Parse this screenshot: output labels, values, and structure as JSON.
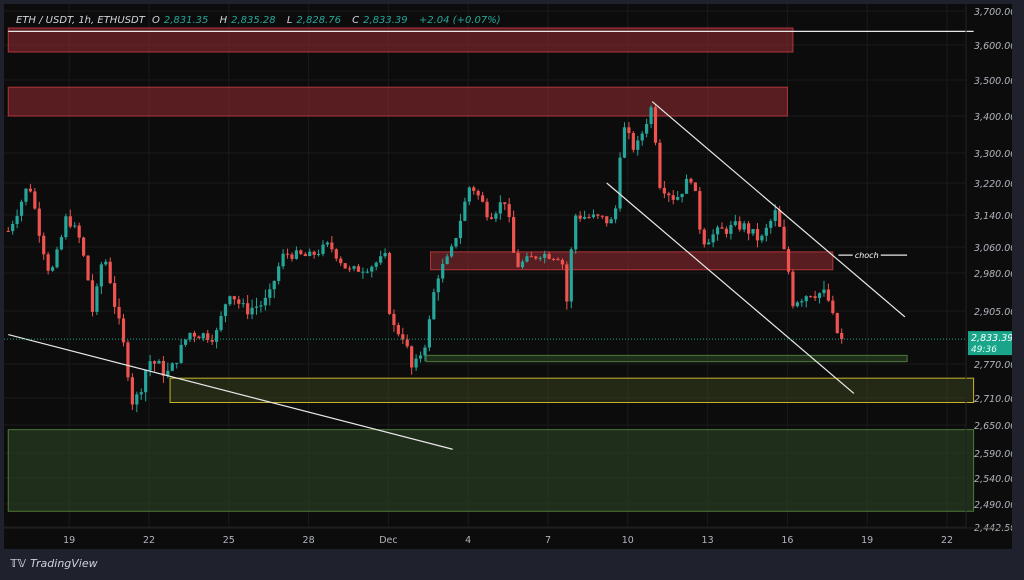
{
  "header": {
    "symbol": "ETH / USDT, 1h, ETHUSDT",
    "open_label": "O",
    "open": "2,831.35",
    "high_label": "H",
    "high": "2,835.28",
    "low_label": "L",
    "low": "2,828.76",
    "close_label": "C",
    "close": "2,833.39",
    "change": "+2.04 (+0.07%)"
  },
  "footer": {
    "brand": "TradingView",
    "logo_text": "TV"
  },
  "colors": {
    "up": "#26a69a",
    "down": "#ef5350",
    "background": "#0c0c0c",
    "price_tag": "#1aa58a",
    "supply_zone": "#8b2a2e",
    "demand_zone": "#2f4a26",
    "yellow_zone": "#c8b42a"
  },
  "chart_data": {
    "type": "candlestick",
    "title": "",
    "interval": "1h",
    "y_ticks": [
      "3,700.00",
      "3,600.00",
      "3,500.00",
      "3,400.00",
      "3,300.00",
      "3,220.00",
      "3,140.00",
      "3,060.00",
      "2,980.00",
      "2,905.00",
      "2,770.00",
      "2,710.00",
      "2,650.00",
      "2,590.00",
      "2,540.00",
      "2,490.00",
      "2,442.50"
    ],
    "x_ticks": [
      "19",
      "22",
      "25",
      "28",
      "Dec",
      "4",
      "7",
      "10",
      "13",
      "16",
      "19",
      "22"
    ],
    "ylim": [
      2442.5,
      3700
    ],
    "last_price": 2833.39,
    "last_price_label": "2,833.39",
    "countdown": "49:36",
    "approx_price_path": [
      [
        "Nov 16 17:00",
        3100
      ],
      [
        "Nov 17 12:00",
        3220
      ],
      [
        "Nov 18 07:00",
        2970
      ],
      [
        "Nov 18 22:00",
        3140
      ],
      [
        "Nov 19 10:00",
        3075
      ],
      [
        "Nov 19 22:00",
        2890
      ],
      [
        "Nov 20 07:00",
        3040
      ],
      [
        "Nov 20 22:00",
        2860
      ],
      [
        "Nov 21 10:00",
        2690
      ],
      [
        "Nov 22 00:00",
        2780
      ],
      [
        "Nov 22 19:00",
        2750
      ],
      [
        "Nov 23 12:00",
        2850
      ],
      [
        "Nov 24 12:00",
        2840
      ],
      [
        "Nov 25 00:00",
        2950
      ],
      [
        "Nov 25 14:00",
        2905
      ],
      [
        "Nov 26 12:00",
        2925
      ],
      [
        "Nov 27 02:00",
        3040
      ],
      [
        "Nov 28 00:00",
        3030
      ],
      [
        "Nov 28 19:00",
        3065
      ],
      [
        "Nov 29 12:00",
        2985
      ],
      [
        "Nov 30 07:00",
        3000
      ],
      [
        "Nov 30 22:00",
        3030
      ],
      [
        "Dec 1 02:00",
        2870
      ],
      [
        "Dec 1 14:00",
        2840
      ],
      [
        "Dec 1 22:00",
        2750
      ],
      [
        "Dec 2 10:00",
        2830
      ],
      [
        "Dec 2 19:00",
        2970
      ],
      [
        "Dec 3 07:00",
        3030
      ],
      [
        "Dec 4 02:00",
        3220
      ],
      [
        "Dec 4 19:00",
        3140
      ],
      [
        "Dec 5 10:00",
        3180
      ],
      [
        "Dec 5 19:00",
        3000
      ],
      [
        "Dec 6 17:00",
        3040
      ],
      [
        "Dec 7 12:00",
        3030
      ],
      [
        "Dec 7 17:00",
        2925
      ],
      [
        "Dec 8 00:00",
        3140
      ],
      [
        "Dec 9 00:00",
        3130
      ],
      [
        "Dec 9 12:00",
        3120
      ],
      [
        "Dec 9 19:00",
        3375
      ],
      [
        "Dec 10 07:00",
        3305
      ],
      [
        "Dec 10 22:00",
        3430
      ],
      [
        "Dec 11 05:00",
        3220
      ],
      [
        "Dec 11 19:00",
        3180
      ],
      [
        "Dec 12 10:00",
        3240
      ],
      [
        "Dec 12 19:00",
        3075
      ],
      [
        "Dec 13 12:00",
        3100
      ],
      [
        "Dec 14 07:00",
        3115
      ],
      [
        "Dec 15 00:00",
        3075
      ],
      [
        "Dec 15 14:00",
        3150
      ],
      [
        "Dec 15 22:00",
        3030
      ],
      [
        "Dec 16 05:00",
        2925
      ],
      [
        "Dec 16 22:00",
        2945
      ],
      [
        "Dec 17 12:00",
        2935
      ],
      [
        "Dec 17 22:00",
        2840
      ],
      [
        "Dec 18 02:00",
        2833.39
      ]
    ],
    "zones": [
      {
        "kind": "supply",
        "from": "Nov 16 17:00",
        "to": "Dec 16 05:00",
        "low": 3580,
        "high": 3650
      },
      {
        "kind": "supply",
        "from": "Nov 16 17:00",
        "to": "Dec 16 00:00",
        "low": 3400,
        "high": 3480
      },
      {
        "kind": "supply",
        "from": "Dec 2 14:00",
        "to": "Dec 17 17:00",
        "low": 2990,
        "high": 3045
      },
      {
        "kind": "demand",
        "from": "Dec 2 10:00",
        "to": "Dec 20 12:00",
        "low": 2776,
        "high": 2792
      },
      {
        "kind": "yellow",
        "from": "Nov 22 19:00",
        "to": "Dec 23 00:00",
        "low": 2700,
        "high": 2745
      },
      {
        "kind": "demand",
        "from": "Nov 16 17:00",
        "to": "Dec 23 00:00",
        "low": 2475,
        "high": 2640
      }
    ],
    "lines": [
      {
        "kind": "horizontal",
        "from": "Nov 16 17:00",
        "to": "Dec 23 00:00",
        "price": 3640
      },
      {
        "kind": "trend",
        "from": [
          "Nov 16 17:00",
          2845
        ],
        "to": [
          "Dec 3 10:00",
          2598
        ]
      },
      {
        "kind": "channel-upper",
        "from": [
          "Dec 10 22:00",
          3440
        ],
        "to": [
          "Dec 20 10:00",
          2890
        ]
      },
      {
        "kind": "channel-lower",
        "from": [
          "Dec 9 05:00",
          3220
        ],
        "to": [
          "Dec 18 12:00",
          2718
        ]
      },
      {
        "kind": "choch",
        "from": [
          "Dec 17 22:00",
          3035
        ],
        "to": [
          "Dec 20 12:00",
          3035
        ],
        "label": "choch"
      }
    ]
  }
}
